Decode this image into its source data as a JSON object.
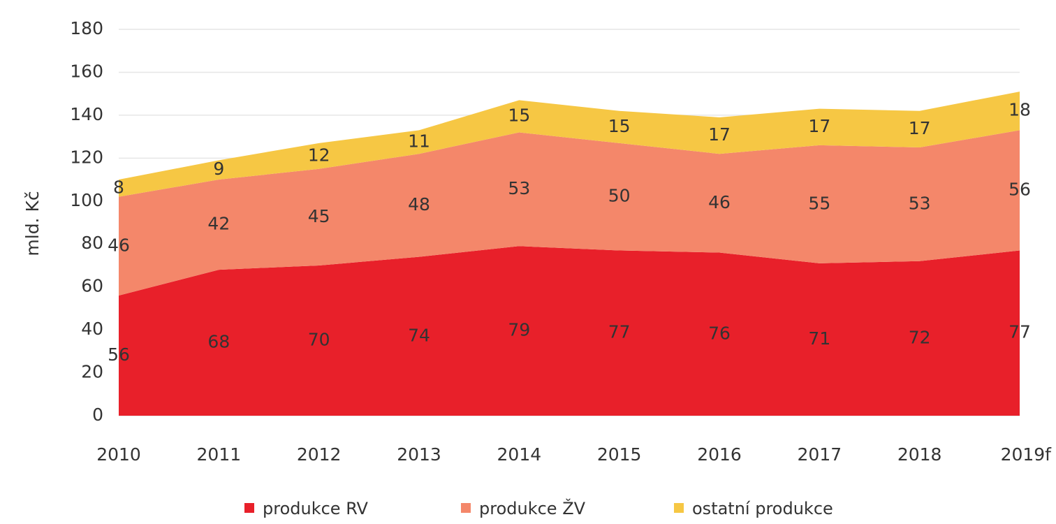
{
  "chart_data": {
    "type": "stacked_area",
    "y_label": "mld. Kč",
    "categories": [
      "2010",
      "2011",
      "2012",
      "2013",
      "2014",
      "2015",
      "2016",
      "2017",
      "2018",
      "2019f"
    ],
    "series": [
      {
        "name": "produkce RV",
        "color": "#e8202a",
        "values": [
          56,
          68,
          70,
          74,
          79,
          77,
          76,
          71,
          72,
          77
        ]
      },
      {
        "name": "produkce ŽV",
        "color": "#f4876a",
        "values": [
          46,
          42,
          45,
          48,
          53,
          50,
          46,
          55,
          53,
          56
        ]
      },
      {
        "name": "ostatní produkce",
        "color": "#f6c744",
        "values": [
          8,
          9,
          12,
          11,
          15,
          15,
          17,
          17,
          17,
          18
        ]
      }
    ],
    "ylim": [
      0,
      180
    ],
    "yticks": [
      0,
      20,
      40,
      60,
      80,
      100,
      120,
      140,
      160,
      180
    ],
    "grid": true
  }
}
